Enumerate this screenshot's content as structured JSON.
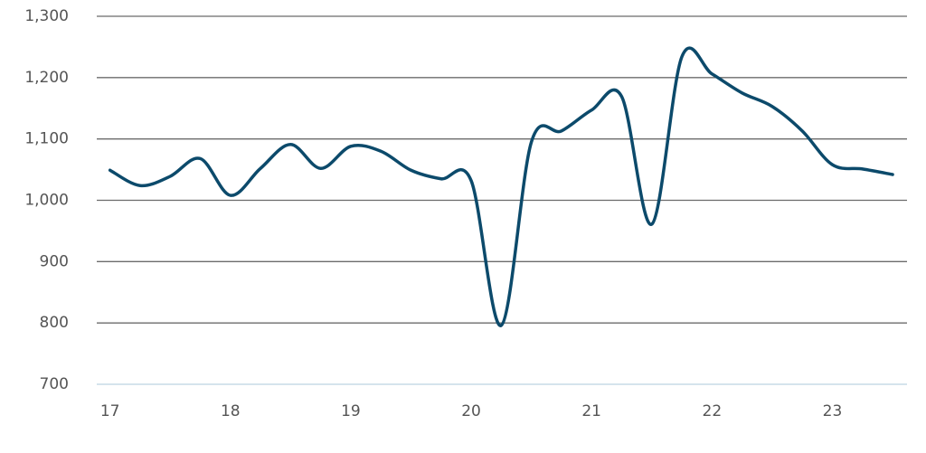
{
  "chart_data": {
    "type": "line",
    "x": [
      17,
      17.25,
      17.5,
      17.75,
      18,
      18.25,
      18.5,
      18.75,
      19,
      19.25,
      19.5,
      19.75,
      20,
      20.25,
      20.5,
      20.75,
      21,
      21.25,
      21.5,
      21.75,
      22,
      22.25,
      22.5,
      22.75,
      23,
      23.25,
      23.5
    ],
    "series": [
      {
        "color": "#0c4a6b",
        "values": [
          1049,
          1024,
          1039,
          1068,
          1008,
          1052,
          1091,
          1052,
          1088,
          1080,
          1049,
          1035,
          1032,
          796,
          1095,
          1113,
          1147,
          1169,
          961,
          1234,
          1206,
          1175,
          1153,
          1113,
          1058,
          1051,
          1042
        ]
      }
    ],
    "xlim": [
      16.89,
      23.62
    ],
    "xticks": [
      17,
      18,
      19,
      20,
      21,
      22,
      23
    ],
    "ylim": [
      700,
      1300
    ],
    "yticks": [
      700,
      800,
      900,
      {
        "value": 1000,
        "label": "1,000"
      },
      {
        "value": 1100,
        "label": "1,100"
      },
      {
        "value": 1200,
        "label": "1,200"
      },
      {
        "value": 1300,
        "label": "1,300"
      }
    ],
    "grid": true
  }
}
